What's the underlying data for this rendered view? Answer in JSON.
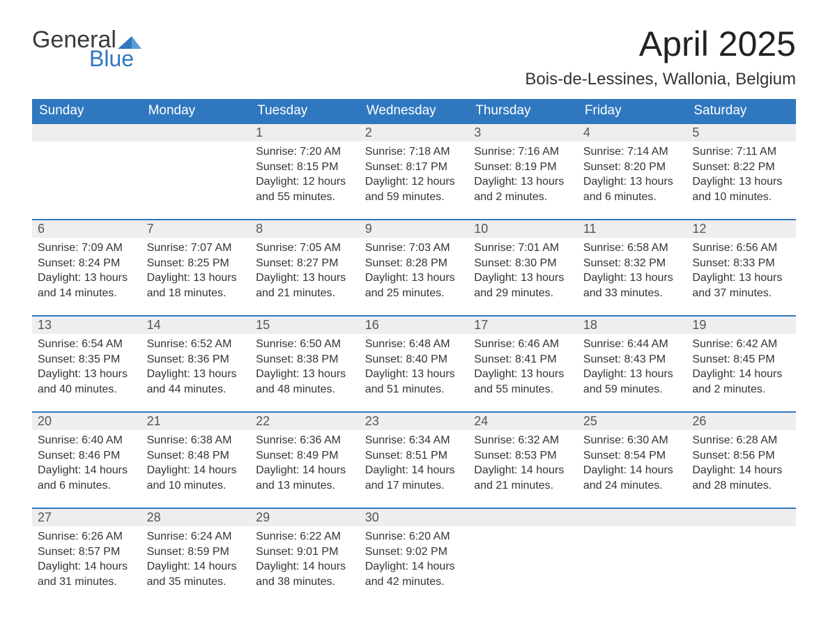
{
  "brand": {
    "word1": "General",
    "word2": "Blue",
    "word1_color": "#3a3a3a",
    "word2_color": "#2f78bf",
    "mark_color": "#2f78bf"
  },
  "title": "April 2025",
  "location": "Bois-de-Lessines, Wallonia, Belgium",
  "colors": {
    "header_bg": "#2f78bf",
    "header_text": "#ffffff",
    "daynum_bg": "#eeeeee",
    "daynum_border": "#2f78bf",
    "text": "#333333",
    "page_bg": "#ffffff"
  },
  "day_headers": [
    "Sunday",
    "Monday",
    "Tuesday",
    "Wednesday",
    "Thursday",
    "Friday",
    "Saturday"
  ],
  "weeks": [
    [
      null,
      null,
      {
        "n": "1",
        "sr": "Sunrise: 7:20 AM",
        "ss": "Sunset: 8:15 PM",
        "dl": "Daylight: 12 hours and 55 minutes."
      },
      {
        "n": "2",
        "sr": "Sunrise: 7:18 AM",
        "ss": "Sunset: 8:17 PM",
        "dl": "Daylight: 12 hours and 59 minutes."
      },
      {
        "n": "3",
        "sr": "Sunrise: 7:16 AM",
        "ss": "Sunset: 8:19 PM",
        "dl": "Daylight: 13 hours and 2 minutes."
      },
      {
        "n": "4",
        "sr": "Sunrise: 7:14 AM",
        "ss": "Sunset: 8:20 PM",
        "dl": "Daylight: 13 hours and 6 minutes."
      },
      {
        "n": "5",
        "sr": "Sunrise: 7:11 AM",
        "ss": "Sunset: 8:22 PM",
        "dl": "Daylight: 13 hours and 10 minutes."
      }
    ],
    [
      {
        "n": "6",
        "sr": "Sunrise: 7:09 AM",
        "ss": "Sunset: 8:24 PM",
        "dl": "Daylight: 13 hours and 14 minutes."
      },
      {
        "n": "7",
        "sr": "Sunrise: 7:07 AM",
        "ss": "Sunset: 8:25 PM",
        "dl": "Daylight: 13 hours and 18 minutes."
      },
      {
        "n": "8",
        "sr": "Sunrise: 7:05 AM",
        "ss": "Sunset: 8:27 PM",
        "dl": "Daylight: 13 hours and 21 minutes."
      },
      {
        "n": "9",
        "sr": "Sunrise: 7:03 AM",
        "ss": "Sunset: 8:28 PM",
        "dl": "Daylight: 13 hours and 25 minutes."
      },
      {
        "n": "10",
        "sr": "Sunrise: 7:01 AM",
        "ss": "Sunset: 8:30 PM",
        "dl": "Daylight: 13 hours and 29 minutes."
      },
      {
        "n": "11",
        "sr": "Sunrise: 6:58 AM",
        "ss": "Sunset: 8:32 PM",
        "dl": "Daylight: 13 hours and 33 minutes."
      },
      {
        "n": "12",
        "sr": "Sunrise: 6:56 AM",
        "ss": "Sunset: 8:33 PM",
        "dl": "Daylight: 13 hours and 37 minutes."
      }
    ],
    [
      {
        "n": "13",
        "sr": "Sunrise: 6:54 AM",
        "ss": "Sunset: 8:35 PM",
        "dl": "Daylight: 13 hours and 40 minutes."
      },
      {
        "n": "14",
        "sr": "Sunrise: 6:52 AM",
        "ss": "Sunset: 8:36 PM",
        "dl": "Daylight: 13 hours and 44 minutes."
      },
      {
        "n": "15",
        "sr": "Sunrise: 6:50 AM",
        "ss": "Sunset: 8:38 PM",
        "dl": "Daylight: 13 hours and 48 minutes."
      },
      {
        "n": "16",
        "sr": "Sunrise: 6:48 AM",
        "ss": "Sunset: 8:40 PM",
        "dl": "Daylight: 13 hours and 51 minutes."
      },
      {
        "n": "17",
        "sr": "Sunrise: 6:46 AM",
        "ss": "Sunset: 8:41 PM",
        "dl": "Daylight: 13 hours and 55 minutes."
      },
      {
        "n": "18",
        "sr": "Sunrise: 6:44 AM",
        "ss": "Sunset: 8:43 PM",
        "dl": "Daylight: 13 hours and 59 minutes."
      },
      {
        "n": "19",
        "sr": "Sunrise: 6:42 AM",
        "ss": "Sunset: 8:45 PM",
        "dl": "Daylight: 14 hours and 2 minutes."
      }
    ],
    [
      {
        "n": "20",
        "sr": "Sunrise: 6:40 AM",
        "ss": "Sunset: 8:46 PM",
        "dl": "Daylight: 14 hours and 6 minutes."
      },
      {
        "n": "21",
        "sr": "Sunrise: 6:38 AM",
        "ss": "Sunset: 8:48 PM",
        "dl": "Daylight: 14 hours and 10 minutes."
      },
      {
        "n": "22",
        "sr": "Sunrise: 6:36 AM",
        "ss": "Sunset: 8:49 PM",
        "dl": "Daylight: 14 hours and 13 minutes."
      },
      {
        "n": "23",
        "sr": "Sunrise: 6:34 AM",
        "ss": "Sunset: 8:51 PM",
        "dl": "Daylight: 14 hours and 17 minutes."
      },
      {
        "n": "24",
        "sr": "Sunrise: 6:32 AM",
        "ss": "Sunset: 8:53 PM",
        "dl": "Daylight: 14 hours and 21 minutes."
      },
      {
        "n": "25",
        "sr": "Sunrise: 6:30 AM",
        "ss": "Sunset: 8:54 PM",
        "dl": "Daylight: 14 hours and 24 minutes."
      },
      {
        "n": "26",
        "sr": "Sunrise: 6:28 AM",
        "ss": "Sunset: 8:56 PM",
        "dl": "Daylight: 14 hours and 28 minutes."
      }
    ],
    [
      {
        "n": "27",
        "sr": "Sunrise: 6:26 AM",
        "ss": "Sunset: 8:57 PM",
        "dl": "Daylight: 14 hours and 31 minutes."
      },
      {
        "n": "28",
        "sr": "Sunrise: 6:24 AM",
        "ss": "Sunset: 8:59 PM",
        "dl": "Daylight: 14 hours and 35 minutes."
      },
      {
        "n": "29",
        "sr": "Sunrise: 6:22 AM",
        "ss": "Sunset: 9:01 PM",
        "dl": "Daylight: 14 hours and 38 minutes."
      },
      {
        "n": "30",
        "sr": "Sunrise: 6:20 AM",
        "ss": "Sunset: 9:02 PM",
        "dl": "Daylight: 14 hours and 42 minutes."
      },
      null,
      null,
      null
    ]
  ]
}
